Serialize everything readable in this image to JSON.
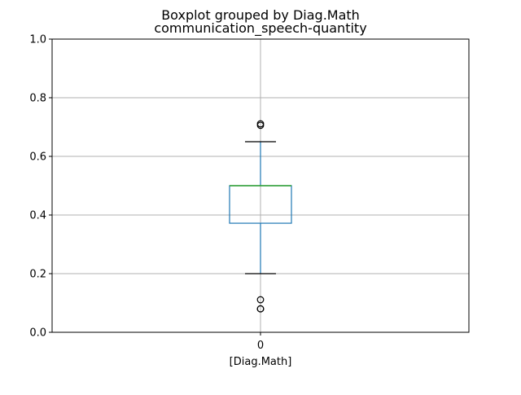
{
  "chart_data": {
    "type": "box",
    "suptitle": "Boxplot grouped by Diag.Math",
    "title": "communication_speech-quantity",
    "xlabel": "[Diag.Math]",
    "ylabel": "",
    "ylim": [
      0,
      1.0
    ],
    "yticks": [
      "0.0",
      "0.2",
      "0.4",
      "0.6",
      "0.8",
      "1.0"
    ],
    "grid": true,
    "categories": [
      "0"
    ],
    "boxes": [
      {
        "category": "0",
        "whisker_low": 0.2,
        "q1": 0.372,
        "median": 0.5,
        "q3": 0.5,
        "whisker_high": 0.65,
        "outliers": [
          0.08,
          0.08,
          0.111,
          0.706,
          0.711
        ]
      }
    ],
    "colors": {
      "box": "#1f77b4",
      "whisker": "#1f77b4",
      "cap": "#000000",
      "median": "#2ca02c",
      "grid": "#b0b0b0",
      "outlier": "#000000"
    }
  }
}
